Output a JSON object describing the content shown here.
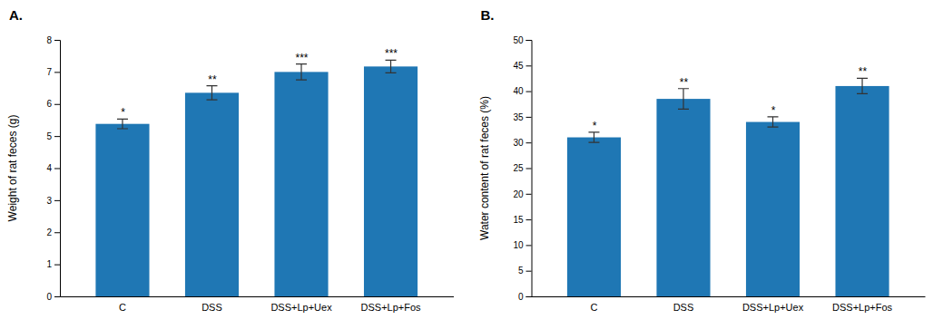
{
  "chart_data": [
    {
      "type": "bar",
      "title": "A.",
      "categories": [
        "C",
        "DSS",
        "DSS+Lp+Uex",
        "DSS+Lp+Fos"
      ],
      "values": [
        5.38,
        6.35,
        7.0,
        7.17
      ],
      "errors": [
        0.15,
        0.22,
        0.25,
        0.2
      ],
      "annotations": [
        "*",
        "**",
        "***",
        "***"
      ],
      "ylabel": "Weight of rat feces (g)",
      "ylim": [
        0,
        8
      ],
      "yticks": [
        0,
        1,
        2,
        3,
        4,
        5,
        6,
        7,
        8
      ],
      "grid": false
    },
    {
      "type": "bar",
      "title": "B.",
      "categories": [
        "C",
        "DSS",
        "DSS+Lp+Uex",
        "DSS+Lp+Fos"
      ],
      "values": [
        31.0,
        38.5,
        34.0,
        41.0
      ],
      "errors": [
        1.0,
        2.0,
        1.0,
        1.5
      ],
      "annotations": [
        "*",
        "**",
        "*",
        "**"
      ],
      "ylabel": "Water content of rat feces (%)",
      "ylim": [
        0,
        50
      ],
      "yticks": [
        0,
        5,
        10,
        15,
        20,
        25,
        30,
        35,
        40,
        45,
        50
      ],
      "grid": false
    }
  ]
}
